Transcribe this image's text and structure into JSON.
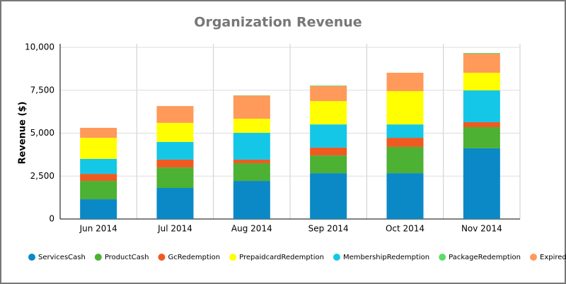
{
  "chart_data": {
    "type": "stacked_bar",
    "title": "Organization Revenue",
    "y_label": "Revenue ($)",
    "categories": [
      "Jun 2014",
      "Jul 2014",
      "Aug 2014",
      "Sep 2014",
      "Oct 2014",
      "Nov 2014"
    ],
    "series": [
      {
        "name": "ServicesCash",
        "color": "#0a89c6",
        "values": [
          1150,
          1810,
          2220,
          2670,
          2670,
          4120
        ]
      },
      {
        "name": "ProductCash",
        "color": "#4db133",
        "values": [
          1070,
          1190,
          1030,
          1030,
          1530,
          1230
        ]
      },
      {
        "name": "GcRedemption",
        "color": "#ef5a22",
        "values": [
          410,
          460,
          210,
          460,
          530,
          290
        ]
      },
      {
        "name": "PrepaidcardRedemption",
        "color": "#ffff00",
        "values": [
          1230,
          1110,
          820,
          1360,
          1940,
          1030
        ]
      },
      {
        "name": "MembershipRedemption",
        "color": "#14c7e6",
        "values": [
          870,
          1030,
          1560,
          1350,
          780,
          1850
        ]
      },
      {
        "name": "PackageRedemption",
        "color": "#5edc6b",
        "values": [
          0,
          0,
          20,
          30,
          0,
          40
        ]
      },
      {
        "name": "ExpiredPackages",
        "color": "#ff9a5a",
        "values": [
          580,
          980,
          1340,
          880,
          1070,
          1110
        ]
      }
    ],
    "stack_order": [
      0,
      1,
      2,
      4,
      3,
      6,
      5
    ],
    "ylim": [
      0,
      10000
    ],
    "yticks": [
      0,
      {
        "value": 2500,
        "label": "2,500"
      },
      {
        "value": 5000,
        "label": "5,000"
      },
      {
        "value": 7500,
        "label": "7,500"
      },
      {
        "value": 10000,
        "label": "10,000"
      }
    ],
    "grid": true
  }
}
